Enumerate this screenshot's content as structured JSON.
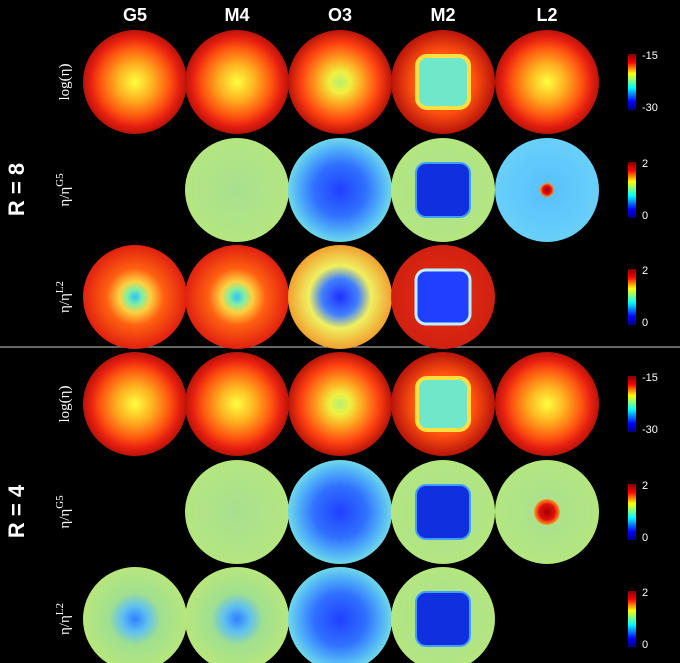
{
  "columns": [
    "G5",
    "M4",
    "O3",
    "M2",
    "L2"
  ],
  "groups": [
    {
      "label": "R = 8",
      "rows": [
        {
          "label": {
            "base": "log(η)"
          },
          "colorbar": {
            "max": -15,
            "min": -30
          }
        },
        {
          "label": {
            "base": "η/η",
            "sup": "G5"
          },
          "colorbar": {
            "max": 2,
            "min": 0
          }
        },
        {
          "label": {
            "base": "η/η",
            "sup": "L2"
          },
          "colorbar": {
            "max": 2,
            "min": 0
          }
        }
      ]
    },
    {
      "label": "R = 4",
      "rows": [
        {
          "label": {
            "base": "log(η)"
          },
          "colorbar": {
            "max": -15,
            "min": -30
          }
        },
        {
          "label": {
            "base": "η/η",
            "sup": "G5"
          },
          "colorbar": {
            "max": 2,
            "min": 0
          }
        },
        {
          "label": {
            "base": "η/η",
            "sup": "L2"
          },
          "colorbar": {
            "max": 2,
            "min": 0
          }
        }
      ]
    }
  ]
}
